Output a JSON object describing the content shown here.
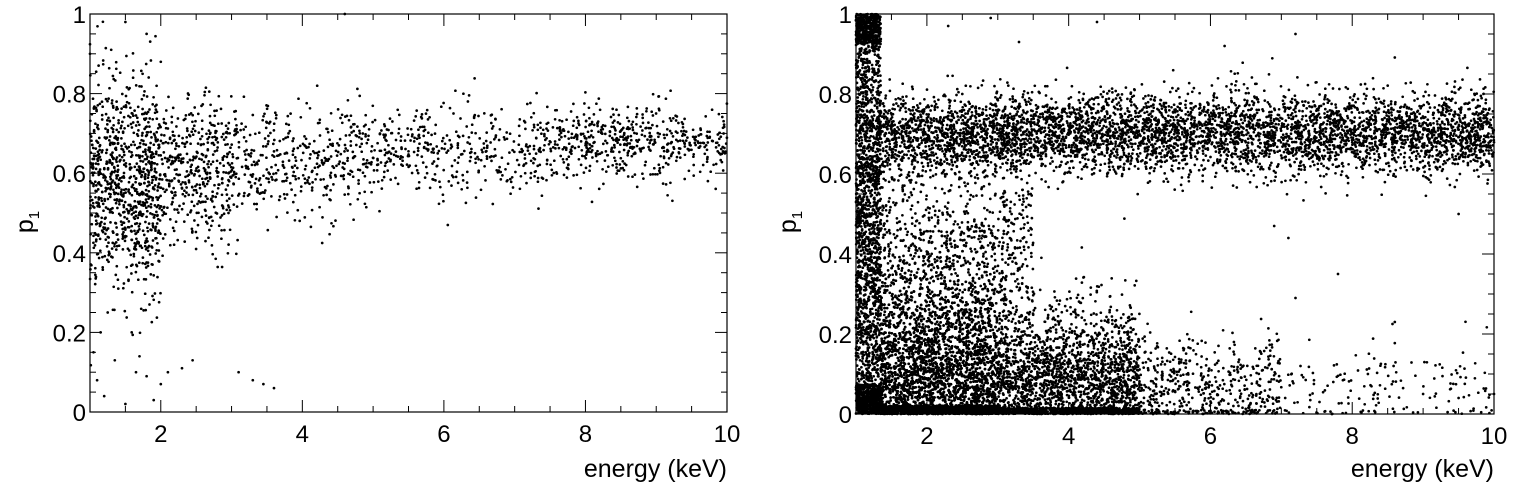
{
  "chart_data": [
    {
      "type": "scatter",
      "xlabel": "energy (keV)",
      "ylabel": "p",
      "ylabel_subscript": "1",
      "xlim": [
        1,
        10
      ],
      "ylim": [
        0,
        1
      ],
      "x_ticks": [
        "2",
        "4",
        "6",
        "8",
        "10"
      ],
      "y_ticks": [
        "0",
        "0.2",
        "0.4",
        "0.6",
        "0.8",
        "1"
      ],
      "grid": false,
      "color": "#000000",
      "series": [
        {
          "distribution": [
            {
              "x_range": [
                1.0,
                2.0
              ],
              "y_center": 0.57,
              "y_spread": 0.13,
              "count": 900
            },
            {
              "x_range": [
                2.0,
                3.0
              ],
              "y_center": 0.6,
              "y_spread": 0.09,
              "count": 420
            },
            {
              "x_range": [
                3.0,
                5.0
              ],
              "y_center": 0.63,
              "y_spread": 0.07,
              "count": 420
            },
            {
              "x_range": [
                5.0,
                7.5
              ],
              "y_center": 0.65,
              "y_spread": 0.06,
              "count": 400
            },
            {
              "x_range": [
                7.5,
                10.0
              ],
              "y_center": 0.68,
              "y_spread": 0.045,
              "count": 520
            }
          ],
          "points": [
            [
              1.0,
              0.9
            ],
            [
              1.3,
              0.91
            ],
            [
              1.5,
              0.98
            ],
            [
              1.8,
              0.95
            ],
            [
              2.0,
              0.88
            ],
            [
              4.6,
              1.0
            ],
            [
              1.05,
              0.15
            ],
            [
              1.1,
              0.08
            ],
            [
              1.2,
              0.04
            ],
            [
              1.35,
              0.13
            ],
            [
              1.5,
              0.02
            ],
            [
              1.65,
              0.1
            ],
            [
              1.7,
              0.14
            ],
            [
              1.8,
              0.09
            ],
            [
              1.9,
              0.03
            ],
            [
              2.0,
              0.07
            ],
            [
              2.1,
              0.1
            ],
            [
              2.3,
              0.11
            ],
            [
              2.45,
              0.13
            ],
            [
              3.1,
              0.1
            ],
            [
              3.3,
              0.08
            ],
            [
              3.45,
              0.07
            ],
            [
              3.6,
              0.06
            ],
            [
              1.15,
              0.2
            ],
            [
              1.25,
              0.25
            ],
            [
              1.4,
              0.31
            ]
          ]
        }
      ]
    },
    {
      "type": "scatter",
      "xlabel": "energy (keV)",
      "ylabel": "p",
      "ylabel_subscript": "1",
      "xlim": [
        1,
        10
      ],
      "ylim": [
        0,
        1
      ],
      "x_ticks": [
        "2",
        "4",
        "6",
        "8",
        "10"
      ],
      "y_ticks": [
        "0",
        "0.2",
        "0.4",
        "0.6",
        "0.8",
        "1"
      ],
      "grid": false,
      "color": "#000000",
      "series": [
        {
          "distribution": [
            {
              "x_range": [
                1.0,
                1.35
              ],
              "y_center": 0.45,
              "y_spread": 0.5,
              "count": 2600
            },
            {
              "x_range": [
                1.35,
                3.0
              ],
              "y_center": 0.06,
              "y_spread": 0.14,
              "count": 6500
            },
            {
              "x_range": [
                3.0,
                5.0
              ],
              "y_center": 0.06,
              "y_spread": 0.1,
              "count": 2600
            },
            {
              "x_range": [
                5.0,
                7.0
              ],
              "y_center": 0.06,
              "y_spread": 0.07,
              "count": 520
            },
            {
              "x_range": [
                7.0,
                10.0
              ],
              "y_center": 0.06,
              "y_spread": 0.06,
              "count": 160
            },
            {
              "x_range": [
                1.3,
                10.0
              ],
              "y_center": 0.7,
              "y_spread": 0.05,
              "count": 5200
            },
            {
              "x_range": [
                1.3,
                3.5
              ],
              "y_center": 0.4,
              "y_spread": 0.13,
              "count": 900
            }
          ],
          "points": [
            [
              2.3,
              0.97
            ],
            [
              2.9,
              0.99
            ],
            [
              3.3,
              0.93
            ],
            [
              4.4,
              0.98
            ],
            [
              6.2,
              0.92
            ],
            [
              7.2,
              0.95
            ],
            [
              7.1,
              0.44
            ],
            [
              7.2,
              0.29
            ],
            [
              8.6,
              0.23
            ],
            [
              7.8,
              0.35
            ],
            [
              9.5,
              0.5
            ],
            [
              6.9,
              0.47
            ],
            [
              9.0,
              0.05
            ],
            [
              9.5,
              0.04
            ],
            [
              10.0,
              0.05
            ]
          ]
        }
      ]
    }
  ]
}
